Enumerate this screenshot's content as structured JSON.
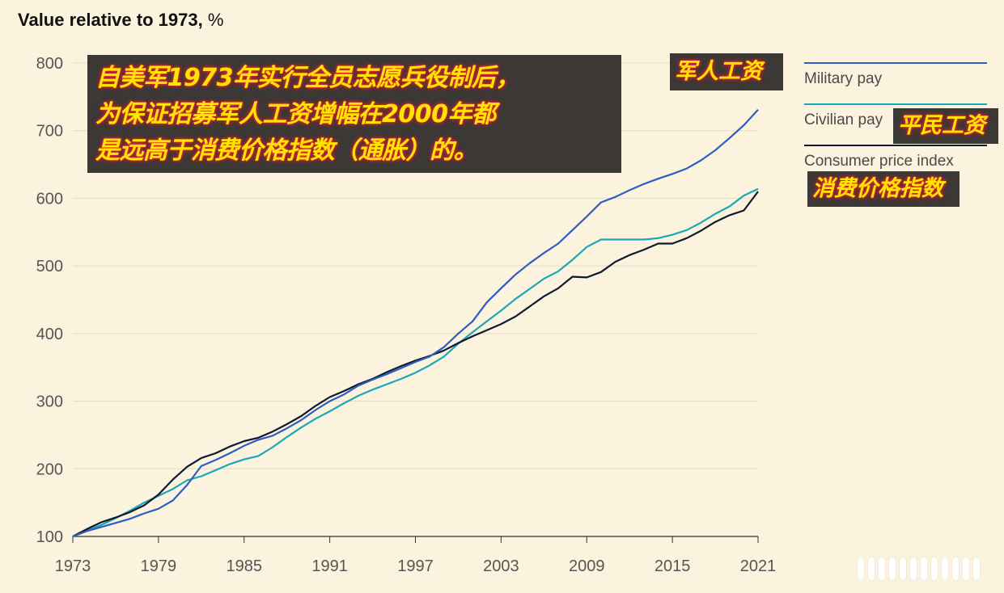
{
  "chart_data": {
    "type": "line",
    "title": "Value relative to 1973,",
    "title_unit": "%",
    "xlabel": "",
    "ylabel": "",
    "xlim": [
      1973,
      2021
    ],
    "ylim": [
      100,
      800
    ],
    "x_ticks": [
      "1973",
      "1979",
      "1985",
      "1991",
      "1997",
      "2003",
      "2009",
      "2015",
      "2021"
    ],
    "y_ticks": [
      "100",
      "200",
      "300",
      "400",
      "500",
      "600",
      "700",
      "800"
    ],
    "grid": "horizontal",
    "legend_position": "right",
    "x": [
      1973,
      1974,
      1975,
      1976,
      1977,
      1978,
      1979,
      1980,
      1981,
      1982,
      1983,
      1984,
      1985,
      1986,
      1987,
      1988,
      1989,
      1990,
      1991,
      1992,
      1993,
      1994,
      1995,
      1996,
      1997,
      1998,
      1999,
      2000,
      2001,
      2002,
      2003,
      2004,
      2005,
      2006,
      2007,
      2008,
      2009,
      2010,
      2011,
      2012,
      2013,
      2014,
      2015,
      2016,
      2017,
      2018,
      2019,
      2020,
      2021
    ],
    "series": [
      {
        "name": "Military pay",
        "color": "#2f5cc4",
        "values": [
          100,
          108,
          114,
          120,
          126,
          134,
          141,
          153,
          176,
          204,
          213,
          223,
          234,
          243,
          249,
          260,
          272,
          287,
          300,
          310,
          323,
          332,
          340,
          349,
          358,
          366,
          380,
          400,
          418,
          446,
          467,
          487,
          504,
          519,
          533,
          553,
          573,
          594,
          602,
          612,
          621,
          629,
          636,
          644,
          656,
          671,
          689,
          708,
          731
        ]
      },
      {
        "name": "Civilian pay",
        "color": "#18a8b7",
        "values": [
          100,
          109,
          117,
          127,
          138,
          150,
          160,
          170,
          183,
          189,
          198,
          207,
          214,
          219,
          232,
          247,
          261,
          274,
          285,
          297,
          308,
          317,
          325,
          333,
          342,
          353,
          366,
          385,
          402,
          418,
          434,
          451,
          466,
          481,
          492,
          509,
          528,
          539,
          539,
          539,
          539,
          541,
          546,
          553,
          564,
          577,
          588,
          604,
          614
        ]
      },
      {
        "name": "Consumer price index",
        "color": "#0e1a2e",
        "values": [
          100,
          111,
          121,
          128,
          136,
          146,
          162,
          184,
          203,
          216,
          223,
          233,
          241,
          246,
          255,
          266,
          278,
          293,
          306,
          315,
          325,
          333,
          343,
          352,
          360,
          367,
          375,
          386,
          396,
          405,
          414,
          425,
          440,
          455,
          467,
          484,
          483,
          491,
          506,
          516,
          524,
          533,
          533,
          541,
          552,
          565,
          575,
          582,
          610
        ]
      }
    ]
  },
  "legend": [
    {
      "label": "Military pay",
      "color": "#2f5cc4"
    },
    {
      "label": "Civilian pay",
      "color": "#18a8b7"
    },
    {
      "label": "Consumer price index",
      "color": "#0e1a2e"
    }
  ],
  "annotations": {
    "main_line1": "自美军1973年实行全员志愿兵役制后，",
    "main_line2": "为保证招募军人工资增幅在2000年都",
    "main_line3": "是远高于消费价格指数（通胀）的。",
    "military_label": "军人工资",
    "civilian_label": "平民工资",
    "cpi_label": "消费价格指数"
  }
}
